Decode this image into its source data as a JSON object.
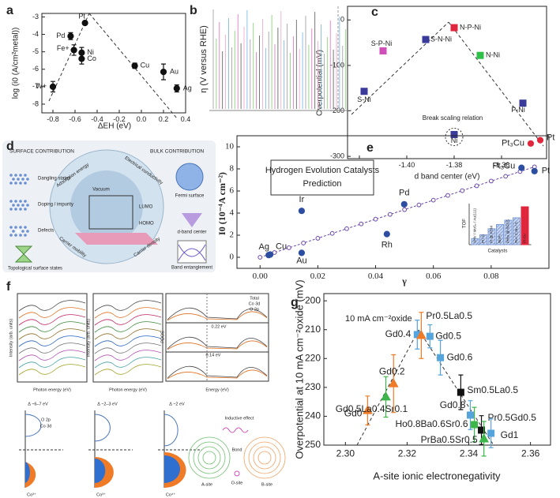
{
  "chart_data": [
    {
      "panel": "a",
      "type": "scatter",
      "xlabel": "ΔEH (eV)",
      "ylabel": "log (i0 (A/cm²metal))",
      "xlim": [
        -0.9,
        0.4
      ],
      "ylim": [
        -8.5,
        -2.8
      ],
      "xticks": [
        -0.8,
        -0.6,
        -0.4,
        -0.2,
        {
          "value": 0,
          "label": "0.0"
        },
        0.2,
        0.4
      ],
      "yticks": [
        -8,
        -7,
        -6,
        -5,
        -4,
        -3
      ],
      "series": [
        {
          "color": "#111111",
          "marker": "circle",
          "labels": [
            "W+",
            "Fe+",
            "Pd",
            "Pt",
            "Ni",
            "Co",
            "Cu",
            "Au",
            "Ag"
          ],
          "x": [
            -0.8,
            -0.61,
            -0.64,
            -0.51,
            -0.54,
            -0.54,
            -0.06,
            0.2,
            0.32
          ],
          "values": [
            -7.0,
            -4.9,
            -4.1,
            -3.35,
            -5.05,
            -5.4,
            -5.8,
            -6.15,
            -7.1
          ],
          "yerr": [
            0.3,
            0.3,
            0.2,
            0.1,
            0.3,
            0.3,
            0.15,
            0.45,
            0.2
          ]
        }
      ]
    },
    {
      "panel": "c",
      "type": "scatter",
      "xlabel": "d band center (eV)",
      "ylabel": "Overpotential (mV)",
      "annotation": "Break scaling relation",
      "xlim": [
        -1.425,
        -1.341
      ],
      "ylim": [
        -305,
        30
      ],
      "xticks": [
        -1.42,
        {
          "value": -1.4,
          "label": "-1.40"
        },
        -1.38,
        -1.36
      ],
      "yticks": [
        0,
        -100,
        -200,
        -300
      ],
      "series": [
        {
          "marker": "square",
          "labels": [
            "S-P-Ni",
            "S-Ni",
            "S-N-Ni",
            "N-P-Ni",
            "N-Ni",
            "P-Ni",
            "Ni"
          ],
          "x": [
            -1.41,
            -1.418,
            -1.392,
            -1.38,
            -1.369,
            -1.351,
            -1.38
          ],
          "values": [
            -68,
            -157,
            -43,
            -17,
            -78,
            -183,
            -252
          ],
          "colors": [
            "#d04fb8",
            "#3a3a9a",
            "#3a3a9a",
            "#e0263c",
            "#2fbf4a",
            "#3a3a9a",
            "#3a3a9a"
          ]
        }
      ]
    },
    {
      "panel": "e",
      "type": "scatter",
      "title_lines": [
        "Hydrogen Evolution Catalysts",
        "Prediction"
      ],
      "xlabel": "γ",
      "ylabel": "I0 (10⁻⁴A cm⁻²)",
      "xlim": [
        -0.008,
        0.1
      ],
      "ylim": [
        -1,
        11
      ],
      "xticks": [
        {
          "value": 0,
          "label": "0.00"
        },
        0.02,
        0.04,
        0.06,
        0.08
      ],
      "yticks": [
        0,
        2,
        4,
        6,
        8,
        10
      ],
      "series": [
        {
          "style": "chain",
          "color": "#6b46a8",
          "x": [
            0,
            0.005,
            0.01,
            0.015,
            0.02,
            0.025,
            0.03,
            0.035,
            0.04,
            0.045,
            0.05,
            0.055,
            0.06,
            0.065,
            0.07,
            0.075,
            0.08,
            0.085,
            0.09,
            0.095
          ],
          "values": [
            0,
            0.43,
            0.86,
            1.29,
            1.72,
            2.16,
            2.59,
            3.02,
            3.45,
            3.88,
            4.31,
            4.74,
            5.17,
            5.6,
            6.03,
            6.47,
            6.9,
            7.33,
            7.76,
            8.19
          ]
        },
        {
          "color": "#2d4ea0",
          "marker": "circle",
          "labels": [
            "Ag",
            "Cu",
            "Au",
            "Ir",
            "Rh",
            "Pd",
            "Pt₃Cu",
            "Pt"
          ],
          "x": [
            0.003,
            0.0035,
            0.0144,
            0.0144,
            0.0439,
            0.0499,
            0.0905,
            0.095
          ],
          "values": [
            0.2,
            0.25,
            0.4,
            4.2,
            2.1,
            4.8,
            8.1,
            7.8
          ]
        },
        {
          "color": "#e0263c",
          "marker": "circle",
          "labels": [
            "Pt₃Cu",
            "Pt"
          ],
          "x": [
            0.0937,
            0.097
          ],
          "values": [
            10.3,
            10.6
          ]
        }
      ],
      "inset": {
        "type": "bar",
        "ylabel": "TOF",
        "xlabel": "Catalysts",
        "categories": [
          "UHV / MoS₂ / Au(111)",
          "Pt / C",
          "Pt @ PCM",
          "Ni₂P₂",
          "PtRu @ RFCS",
          "Ru / C₃N₄ / C",
          "Pt-Cu"
        ],
        "values": [
          1.0,
          1.6,
          2.6,
          3.3,
          4.0,
          4.4,
          6.2
        ],
        "colors": [
          "#7f9ed6",
          "#7f9ed6",
          "#7f9ed6",
          "#7f9ed6",
          "#7f9ed6",
          "#7f9ed6",
          "#e0263c"
        ]
      }
    },
    {
      "panel": "g",
      "type": "scatter",
      "xlabel": "A-site ionic electronegativity",
      "ylabel": "Overpotential at 10 mA cm⁻²oxide (mV)",
      "annotation": "10 mA cm⁻²oxide",
      "xlim": [
        2.293,
        2.3665
      ],
      "ylim": [
        250,
        197.5
      ],
      "xticks": [
        {
          "value": 2.3,
          "label": "2.30"
        },
        2.32,
        2.34,
        2.36
      ],
      "yticks": [
        200,
        210,
        220,
        230,
        240,
        250
      ],
      "series": [
        {
          "labels": [
            "Gd0",
            "Gd0.5La0.4Sr0.1",
            "Gd0.2",
            "Gd0.4",
            "Pr0.5La0.5",
            "Gd0.5",
            "Gd0.6",
            "Sm0.5La0.5",
            "Gd0.8",
            "Ho0.8Ba0.6Sr0.6",
            "Pr0.5Gd0.5",
            "PrBa0.5Sr0.5",
            "Gd1"
          ],
          "x": [
            2.3072,
            2.3131,
            2.3156,
            2.3233,
            2.3246,
            2.3274,
            2.3308,
            2.3374,
            2.3405,
            2.3418,
            2.3441,
            2.3449,
            2.3472
          ],
          "values": [
            238.0,
            233.3,
            228.7,
            211.7,
            212.0,
            212.3,
            219.7,
            231.7,
            239.6,
            242.9,
            244.8,
            247.8,
            245.9
          ],
          "yerr": [
            5,
            7,
            10,
            5,
            8,
            4,
            6,
            6,
            5,
            6,
            5,
            6,
            5
          ],
          "markers": [
            "triangle",
            "triangle",
            "triangle",
            "square",
            "triangle",
            "square",
            "square",
            "square",
            "square",
            "square",
            "square",
            "triangle",
            "square"
          ],
          "colors": [
            "#f07b27",
            "#3db54a",
            "#f07b27",
            "#56a4dc",
            "#f07b27",
            "#56a4dc",
            "#56a4dc",
            "#111111",
            "#56a4dc",
            "#3db54a",
            "#111111",
            "#3db54a",
            "#56a4dc"
          ]
        }
      ]
    }
  ],
  "panel_b": {
    "label": "b",
    "ylabel": "η (V versus RHE)"
  },
  "panel_d": {
    "label": "d",
    "texts": [
      "SURFACE CONTRIBUTION",
      "BULK CONTRIBUTION",
      "Dangling states",
      "Doping / impurity",
      "Defects",
      "Topological surface states",
      "Adsorption energy",
      "Electrical conductivity",
      "Fermi surface",
      "d-band center",
      "Band entanglement",
      "Carrier mobility",
      "Carrier density",
      "Vacuum",
      "LUMO",
      "HOMO"
    ]
  },
  "panel_f": {
    "label": "f",
    "texts": [
      "Intensity (arb. units)",
      "Intensity (arb. units)",
      "Photon energy (eV)",
      "Photon energy (eV)",
      "PDOS",
      "Energy (eV)",
      "Total",
      "Co 3d",
      "O 2p",
      "0.22 eV",
      "0.14 eV",
      "Δ ~6–7 eV",
      "Δ ~2–3 eV",
      "Δ ~2 eV",
      "O 2p",
      "Co 3d",
      "Co³⁺",
      "Co³⁺",
      "Co⁴⁺",
      "Inductive effect",
      "Bond",
      "A-site",
      "O-site",
      "B-site"
    ]
  }
}
